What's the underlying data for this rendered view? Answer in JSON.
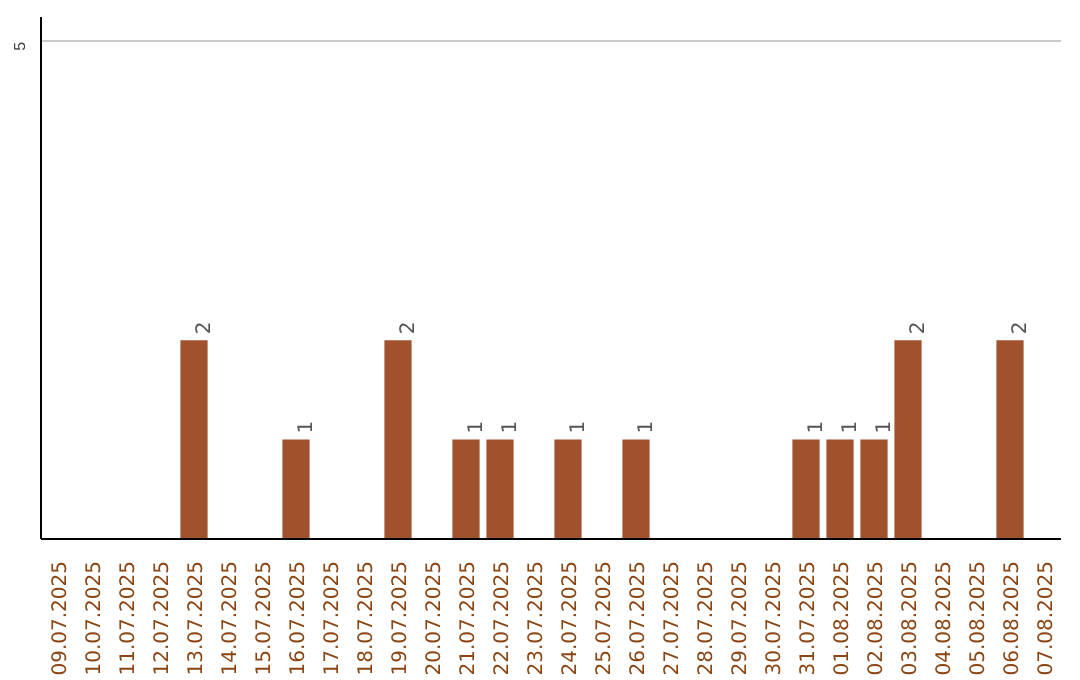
{
  "chart_data": {
    "type": "bar",
    "categories": [
      "09.07.2025",
      "10.07.2025",
      "11.07.2025",
      "12.07.2025",
      "13.07.2025",
      "14.07.2025",
      "15.07.2025",
      "16.07.2025",
      "17.07.2025",
      "18.07.2025",
      "19.07.2025",
      "20.07.2025",
      "21.07.2025",
      "22.07.2025",
      "23.07.2025",
      "24.07.2025",
      "25.07.2025",
      "26.07.2025",
      "27.07.2025",
      "28.07.2025",
      "29.07.2025",
      "30.07.2025",
      "31.07.2025",
      "01.08.2025",
      "02.08.2025",
      "03.08.2025",
      "04.08.2025",
      "05.08.2025",
      "06.08.2025",
      "07.08.2025"
    ],
    "values": [
      0,
      0,
      0,
      0,
      2,
      0,
      0,
      1,
      0,
      0,
      2,
      0,
      1,
      1,
      0,
      1,
      0,
      1,
      0,
      0,
      0,
      0,
      1,
      1,
      1,
      2,
      0,
      0,
      2,
      0
    ],
    "value_labels": [
      null,
      null,
      null,
      null,
      "2",
      null,
      null,
      "1",
      null,
      null,
      "2",
      null,
      "1",
      "1",
      null,
      "1",
      null,
      "1",
      null,
      null,
      null,
      null,
      "1",
      "1",
      "1",
      "2",
      null,
      null,
      "2",
      null
    ],
    "color": "#a0522d",
    "ylim": [
      0,
      5.25
    ],
    "yticks": [
      5
    ],
    "grid": "y"
  }
}
